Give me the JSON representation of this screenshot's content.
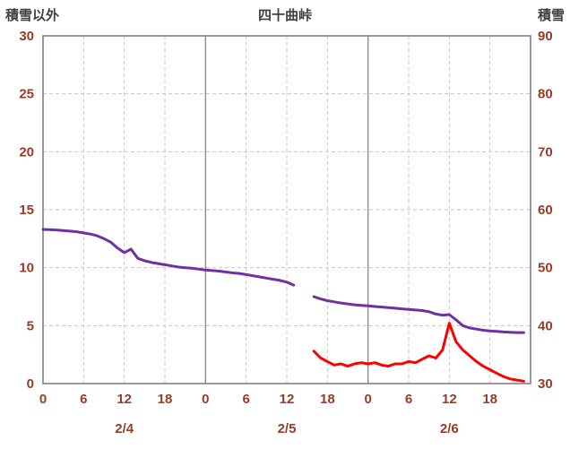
{
  "chart_data": {
    "type": "line",
    "title": "四十曲峠",
    "left_axis": {
      "label": "積雪以外",
      "min": 0,
      "max": 30,
      "ticks": [
        0,
        5,
        10,
        15,
        20,
        25,
        30
      ]
    },
    "right_axis": {
      "label": "積雪",
      "min": 30,
      "max": 90,
      "ticks": [
        30,
        40,
        50,
        60,
        70,
        80,
        90
      ]
    },
    "x_axis": {
      "hours_span": 72,
      "tick_interval_hours": 6,
      "tick_labels": [
        "0",
        "6",
        "12",
        "18",
        "0",
        "6",
        "12",
        "18",
        "0",
        "6",
        "12",
        "18"
      ],
      "day_labels": [
        "2/4",
        "2/5",
        "2/6"
      ],
      "day_boundaries_hours": [
        24,
        48
      ],
      "grid": true
    },
    "style": {
      "tick_label_color": "#9A3B26",
      "title_color": "#3F3F3F",
      "grid_color": "#C6C6C6",
      "day_line_color": "#8C8C8C",
      "border_color": "#808080"
    },
    "series": [
      {
        "name": "積雪",
        "color": "#7030A0",
        "axis": "right",
        "width": 3,
        "start_hour": 0,
        "values": [
          56.6,
          56.55,
          56.5,
          56.4,
          56.3,
          56.2,
          56.0,
          55.8,
          55.5,
          55.0,
          54.4,
          53.4,
          52.6,
          53.2,
          51.6,
          51.2,
          50.9,
          50.7,
          50.5,
          50.3,
          50.1,
          50.0,
          49.9,
          49.75,
          49.6,
          49.5,
          49.4,
          49.25,
          49.1,
          49.0,
          48.8,
          48.6,
          48.4,
          48.2,
          48.0,
          47.8,
          47.5,
          47.0,
          null,
          null,
          45.0,
          44.6,
          44.3,
          44.1,
          43.9,
          43.75,
          43.6,
          43.5,
          43.4,
          43.3,
          43.2,
          43.1,
          43.0,
          42.9,
          42.8,
          42.7,
          42.6,
          42.4,
          42.0,
          41.8,
          41.9,
          41.0,
          40.0,
          39.6,
          39.4,
          39.2,
          39.1,
          39.0,
          38.9,
          38.85,
          38.8,
          38.8
        ]
      },
      {
        "name": "積雪以外",
        "color": "#FF0000",
        "axis": "left",
        "width": 3,
        "start_hour": 40,
        "values": [
          2.8,
          2.2,
          1.9,
          1.6,
          1.7,
          1.5,
          1.7,
          1.8,
          1.7,
          1.8,
          1.6,
          1.5,
          1.7,
          1.7,
          1.9,
          1.8,
          2.1,
          2.4,
          2.2,
          2.9,
          5.2,
          3.6,
          2.9,
          2.4,
          1.9,
          1.5,
          1.2,
          0.9,
          0.6,
          0.4,
          0.3,
          0.2
        ]
      }
    ]
  }
}
